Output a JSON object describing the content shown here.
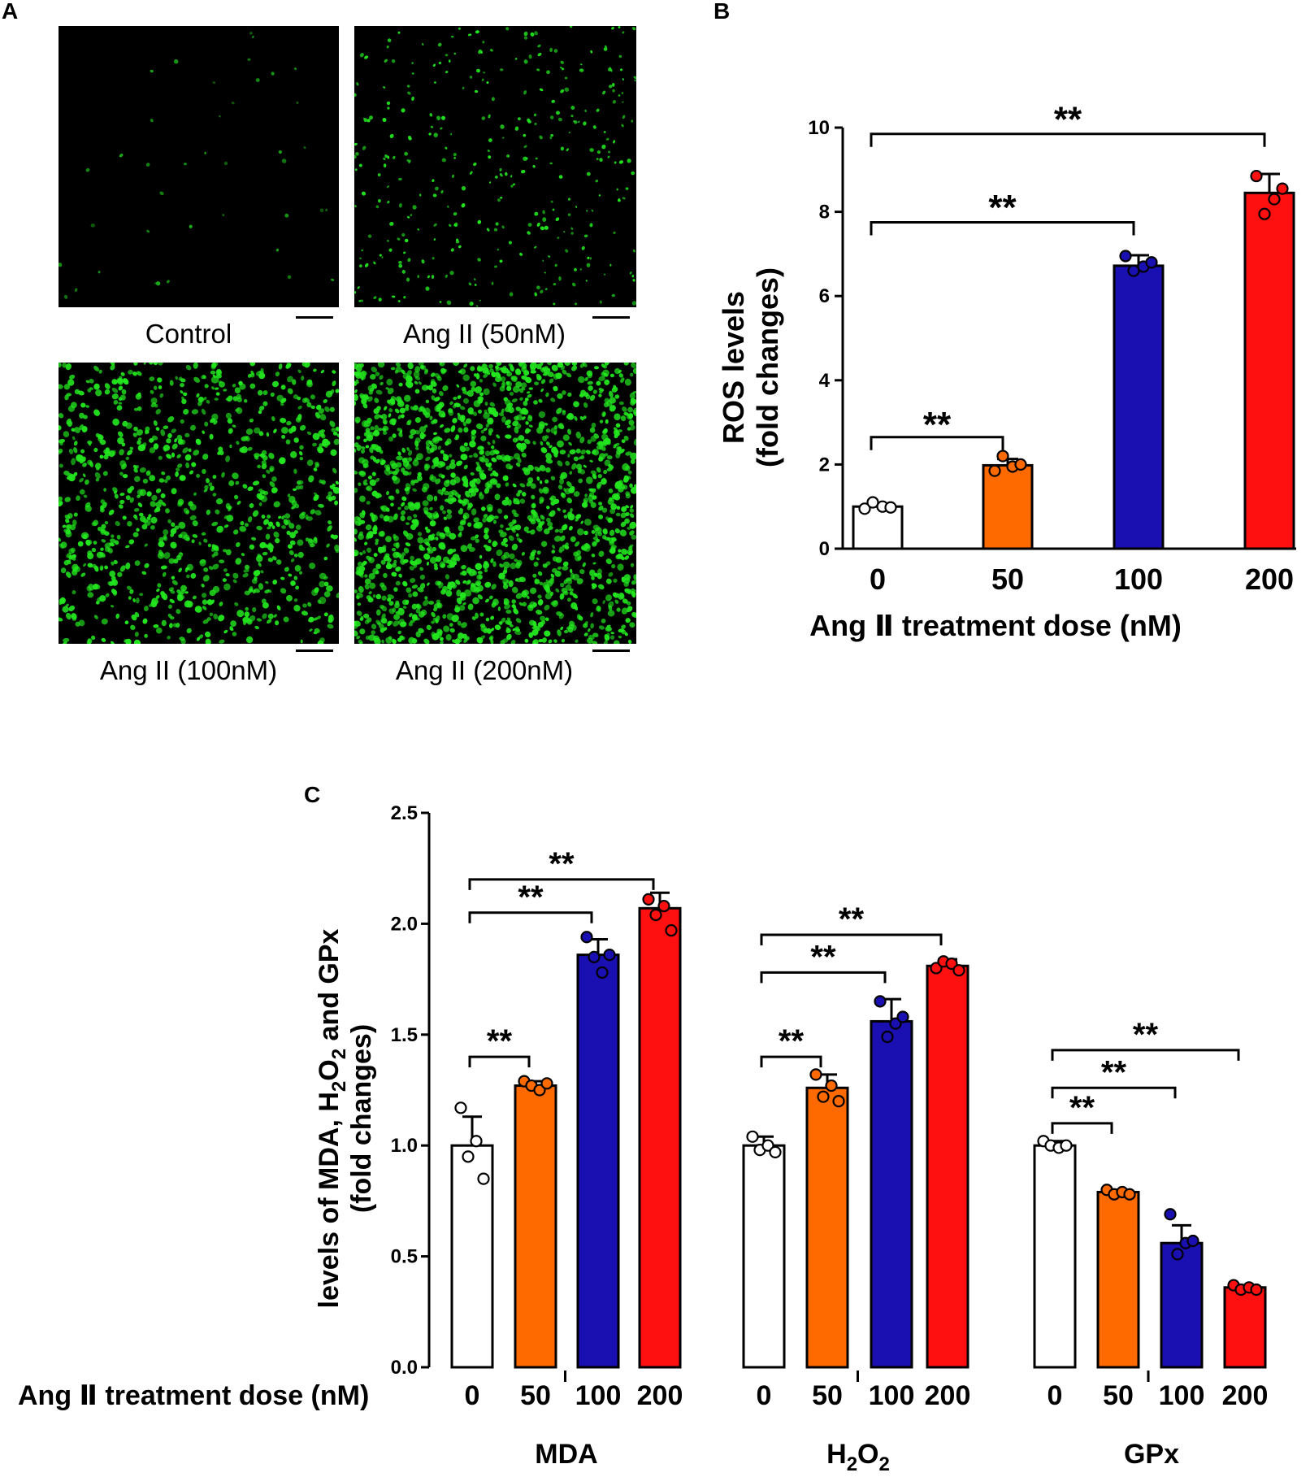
{
  "panels": {
    "a_letter": "A",
    "b_letter": "B",
    "c_letter": "C"
  },
  "micrographs": [
    {
      "label": "Control",
      "density": 40
    },
    {
      "label": "Ang II (50nM)",
      "density": 350
    },
    {
      "label": "Ang II (100nM)",
      "density": 950
    },
    {
      "label": "Ang II (200nM)",
      "density": 1700
    }
  ],
  "colors": {
    "dose_0": "#ffffff",
    "dose_50": "#ff6a00",
    "dose_100": "#1a0fb0",
    "dose_200": "#ff1010",
    "fluorescence": "#22e61e"
  },
  "chart_data": [
    {
      "type": "bar",
      "categories": [
        "0",
        "50",
        "100",
        "200"
      ],
      "values": [
        1.0,
        1.98,
        6.72,
        8.45
      ],
      "errors": [
        0.07,
        0.15,
        0.25,
        0.45
      ],
      "points": [
        [
          0.95,
          1.1,
          1.0,
          0.98
        ],
        [
          1.85,
          2.2,
          1.95,
          2.0
        ],
        [
          6.95,
          6.6,
          6.7,
          6.8
        ],
        [
          8.85,
          7.95,
          8.3,
          8.55
        ]
      ],
      "ylabel_line1": "ROS levels",
      "ylabel_line2": "(fold changes)",
      "xlabel": "Ang Ⅱ  treatment dose (nM)",
      "ylim": [
        0,
        10
      ],
      "yticks": [
        "0",
        "2",
        "4",
        "6",
        "8",
        "10"
      ],
      "significance": [
        {
          "from": 0,
          "to": 1,
          "label": "**"
        },
        {
          "from": 0,
          "to": 2,
          "label": "**"
        },
        {
          "from": 0,
          "to": 3,
          "label": "**"
        }
      ]
    },
    {
      "type": "bar",
      "groups": [
        "MDA",
        "H2O2",
        "GPx"
      ],
      "group_labels": [
        {
          "main": "MDA",
          "sub1": "",
          "mid": "",
          "sub2": ""
        },
        {
          "main": "H",
          "sub1": "2",
          "mid": "O",
          "sub2": "2"
        },
        {
          "main": "GPx",
          "sub1": "",
          "mid": "",
          "sub2": ""
        }
      ],
      "categories": [
        "0",
        "50",
        "100",
        "200"
      ],
      "values": [
        [
          1.0,
          1.27,
          1.86,
          2.07
        ],
        [
          1.0,
          1.26,
          1.56,
          1.81
        ],
        [
          1.0,
          0.79,
          0.56,
          0.36
        ]
      ],
      "errors": [
        [
          0.13,
          0.02,
          0.07,
          0.07
        ],
        [
          0.04,
          0.06,
          0.1,
          0.03
        ],
        [
          0.02,
          0.01,
          0.08,
          0.01
        ]
      ],
      "points": [
        [
          [
            1.17,
            0.95,
            1.02,
            0.85
          ],
          [
            1.29,
            1.27,
            1.25,
            1.28
          ],
          [
            1.94,
            1.85,
            1.78,
            1.86
          ],
          [
            2.11,
            2.04,
            2.08,
            1.97
          ]
        ],
        [
          [
            1.04,
            0.98,
            1.0,
            0.97
          ],
          [
            1.32,
            1.22,
            1.27,
            1.2
          ],
          [
            1.65,
            1.49,
            1.55,
            1.58
          ],
          [
            1.8,
            1.83,
            1.82,
            1.79
          ]
        ],
        [
          [
            1.02,
            1.0,
            0.99,
            1.0
          ],
          [
            0.8,
            0.78,
            0.79,
            0.78
          ],
          [
            0.69,
            0.51,
            0.56,
            0.57
          ],
          [
            0.37,
            0.35,
            0.36,
            0.35
          ]
        ]
      ],
      "ylabel_part1": "levels of MDA, H",
      "ylabel_sub1": "2",
      "ylabel_part2": "O",
      "ylabel_sub2": "2",
      "ylabel_part3": " and GPx",
      "ylabel_line2": "(fold changes)",
      "xlabel": "Ang Ⅱ  treatment dose (nM)",
      "ylim": [
        0,
        2.5
      ],
      "yticks": [
        "0.0",
        "0.5",
        "1.0",
        "1.5",
        "2.0",
        "2.5"
      ],
      "significance": [
        [
          {
            "from": 0,
            "to": 1,
            "label": "**"
          },
          {
            "from": 0,
            "to": 2,
            "label": "**"
          },
          {
            "from": 0,
            "to": 3,
            "label": "**"
          }
        ],
        [
          {
            "from": 0,
            "to": 1,
            "label": "**"
          },
          {
            "from": 0,
            "to": 2,
            "label": "**"
          },
          {
            "from": 0,
            "to": 3,
            "label": "**"
          }
        ],
        [
          {
            "from": 0,
            "to": 1,
            "label": "**"
          },
          {
            "from": 0,
            "to": 2,
            "label": "**"
          },
          {
            "from": 0,
            "to": 3,
            "label": "**"
          }
        ]
      ]
    }
  ]
}
